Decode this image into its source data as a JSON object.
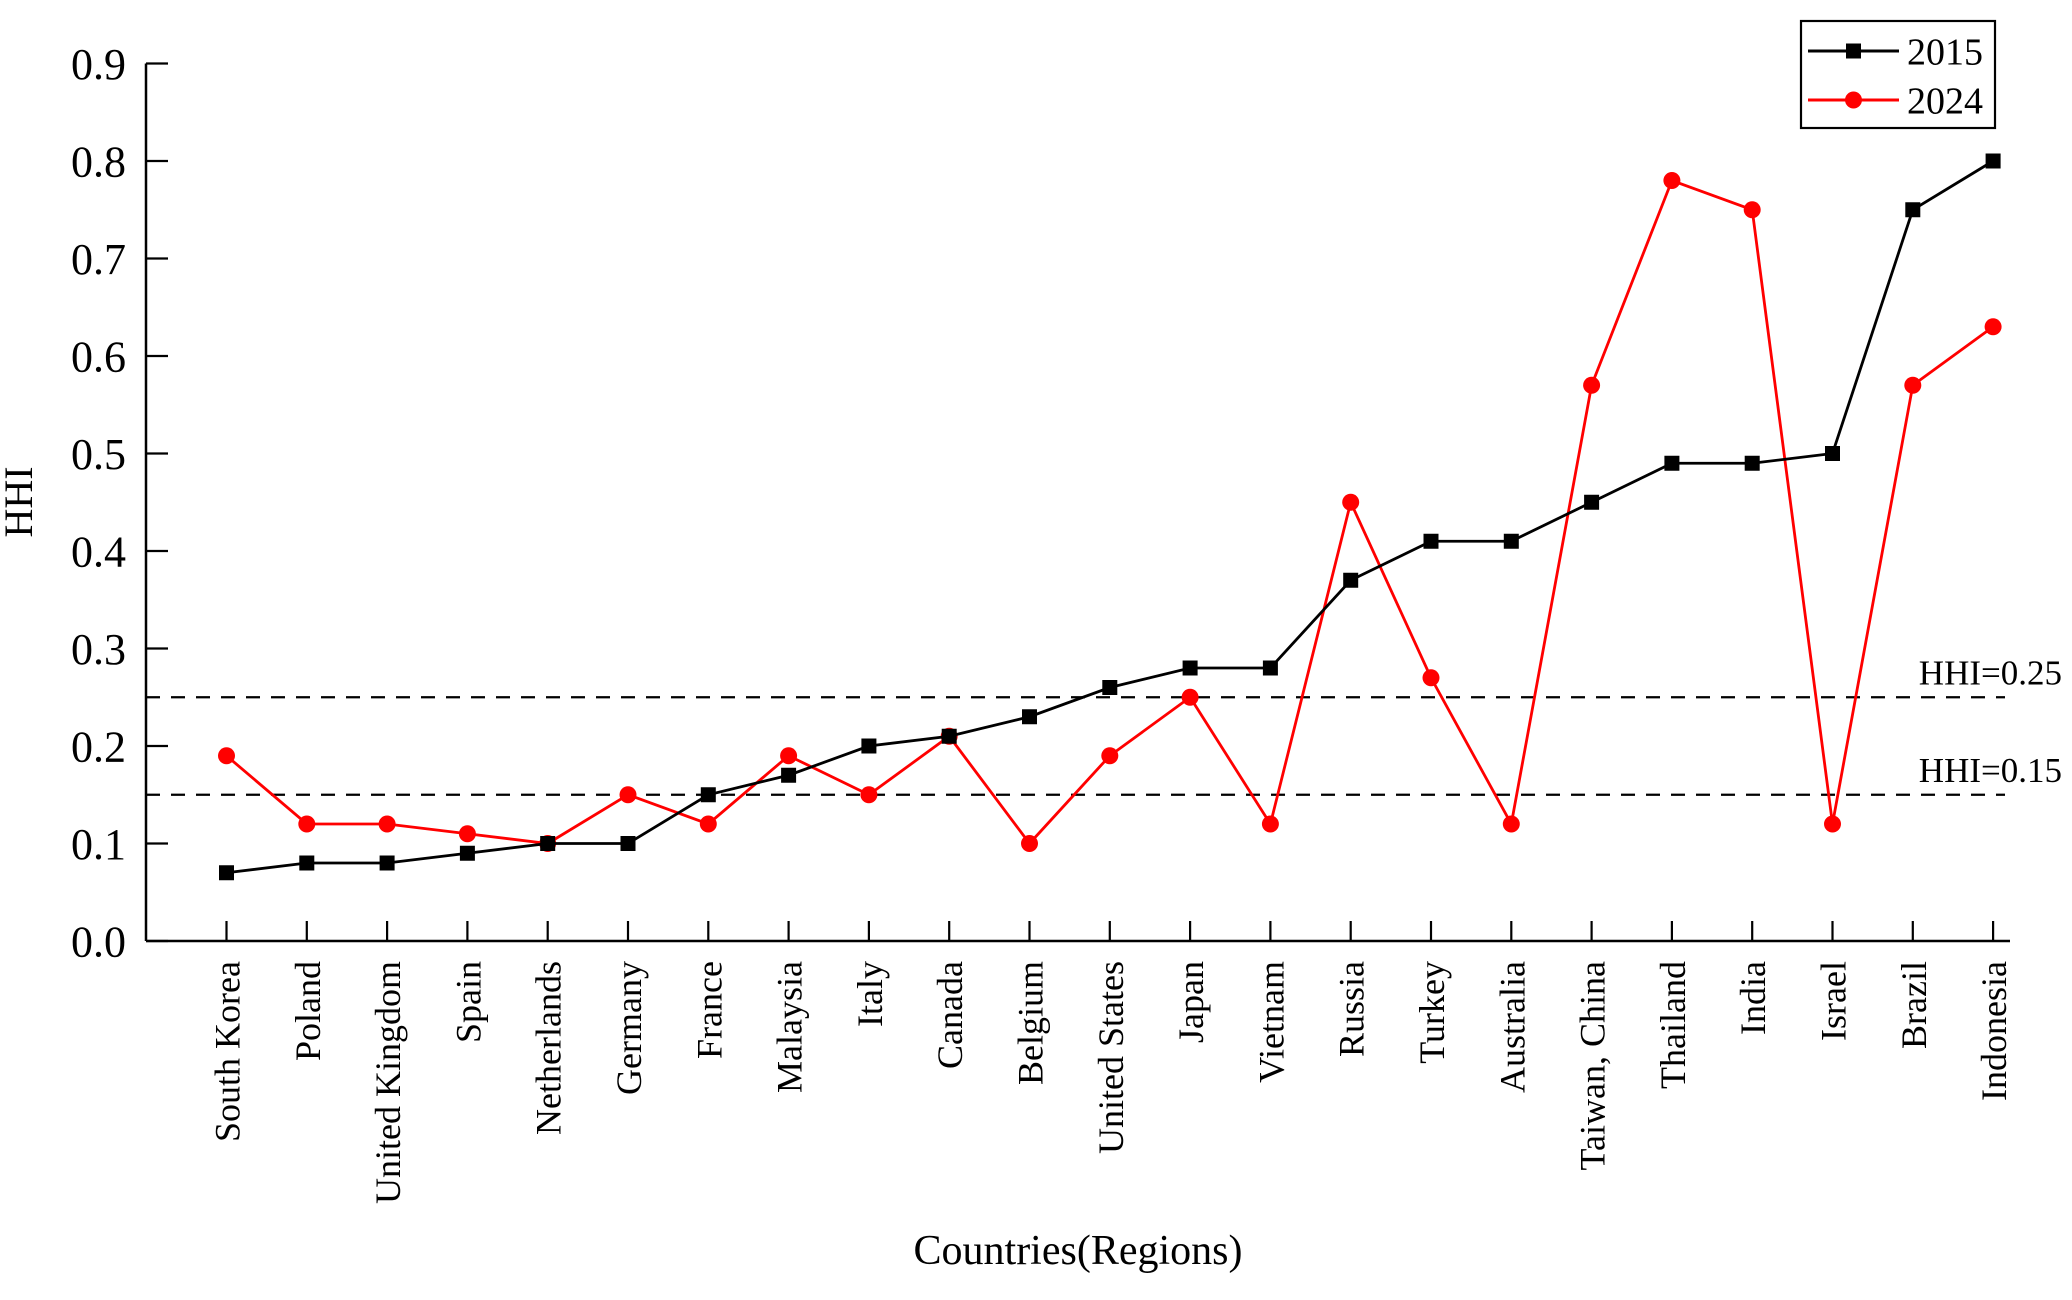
{
  "chart_data": {
    "type": "line",
    "title": "",
    "xlabel": "Countries(Regions)",
    "ylabel": "HHI",
    "ylim": [
      0.0,
      0.9
    ],
    "ytick_step": 0.1,
    "ytick_labels": [
      "0.0",
      "0.1",
      "0.2",
      "0.3",
      "0.4",
      "0.5",
      "0.6",
      "0.7",
      "0.8",
      "0.9"
    ],
    "grid": false,
    "legend_position": "top-right",
    "categories": [
      "South Korea",
      "Poland",
      "United Kingdom",
      "Spain",
      "Netherlands",
      "Germany",
      "France",
      "Malaysia",
      "Italy",
      "Canada",
      "Belgium",
      "United States",
      "Japan",
      "Vietnam",
      "Russia",
      "Turkey",
      "Australia",
      "Taiwan, China",
      "Thailand",
      "India",
      "Israel",
      "Brazil",
      "Indonesia"
    ],
    "series": [
      {
        "name": "2024",
        "color": "#ff0000",
        "marker": "circle",
        "values": [
          0.19,
          0.12,
          0.12,
          0.11,
          0.1,
          0.15,
          0.12,
          0.19,
          0.15,
          0.21,
          0.1,
          0.19,
          0.25,
          0.12,
          0.45,
          0.27,
          0.12,
          0.57,
          0.78,
          0.75,
          0.12,
          0.57,
          0.63
        ]
      },
      {
        "name": "2015",
        "color": "#000000",
        "marker": "square",
        "values": [
          0.07,
          0.08,
          0.08,
          0.09,
          0.1,
          0.1,
          0.15,
          0.17,
          0.2,
          0.21,
          0.23,
          0.26,
          0.28,
          0.28,
          0.37,
          0.41,
          0.41,
          0.45,
          0.49,
          0.49,
          0.5,
          0.75,
          0.8
        ]
      }
    ],
    "legend_order": [
      "2015",
      "2024"
    ],
    "reference_lines": [
      {
        "value": 0.25,
        "label": "HHI=0.25",
        "style": "dashed",
        "color": "#000000"
      },
      {
        "value": 0.15,
        "label": "HHI=0.15",
        "style": "dashed",
        "color": "#000000"
      }
    ],
    "colors": {
      "axis": "#000000",
      "background": "#ffffff"
    }
  }
}
